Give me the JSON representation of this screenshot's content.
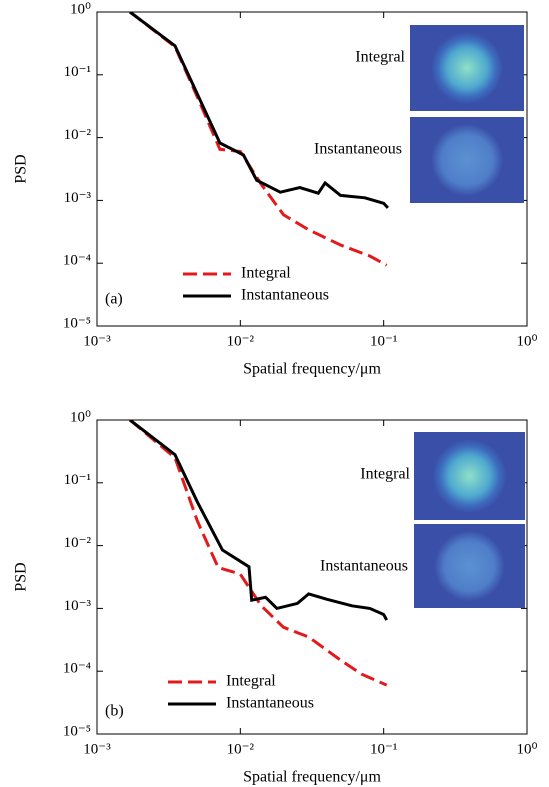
{
  "chart_data": [
    {
      "type": "line",
      "panel_label": "(a)",
      "xlabel": "Spatial frequency/μm",
      "ylabel": "PSD",
      "xscale": "log",
      "yscale": "log",
      "legend": "lower left",
      "xlim": [
        0.001,
        1
      ],
      "ylim": [
        1e-05,
        1
      ],
      "xticks": [
        {
          "value": 0.001,
          "label": "10⁻³"
        },
        {
          "value": 0.01,
          "label": "10⁻²"
        },
        {
          "value": 0.1,
          "label": "10⁻¹"
        },
        {
          "value": 1,
          "label": "10⁰"
        }
      ],
      "yticks": [
        {
          "value": 1e-05,
          "label": "10⁻⁵"
        },
        {
          "value": 0.0001,
          "label": "10⁻⁴"
        },
        {
          "value": 0.001,
          "label": "10⁻³"
        },
        {
          "value": 0.01,
          "label": "10⁻²"
        },
        {
          "value": 0.1,
          "label": "10⁻¹"
        },
        {
          "value": 1,
          "label": "10⁰"
        }
      ],
      "inset_labels": [
        "Integral",
        "Instantaneous"
      ],
      "series": [
        {
          "name": "Integral",
          "color": "#e31a1c",
          "style": "dashed",
          "x": [
            0.0017,
            0.0035,
            0.005,
            0.0072,
            0.01,
            0.014,
            0.02,
            0.03,
            0.05,
            0.08,
            0.105
          ],
          "values": [
            1,
            0.28,
            0.045,
            0.0065,
            0.006,
            0.0018,
            0.00059,
            0.00034,
            0.000195,
            0.00013,
            9.3e-05
          ]
        },
        {
          "name": "Instantaneous",
          "color": "#000000",
          "style": "solid",
          "x": [
            0.0017,
            0.0035,
            0.005,
            0.0072,
            0.0105,
            0.013,
            0.019,
            0.026,
            0.035,
            0.039,
            0.05,
            0.074,
            0.1,
            0.107
          ],
          "values": [
            1,
            0.29,
            0.05,
            0.0082,
            0.0053,
            0.0021,
            0.00135,
            0.0016,
            0.0013,
            0.0019,
            0.0012,
            0.0011,
            0.0009,
            0.00076
          ]
        }
      ]
    },
    {
      "type": "line",
      "panel_label": "(b)",
      "xlabel": "Spatial frequency/μm",
      "ylabel": "PSD",
      "xscale": "log",
      "yscale": "log",
      "legend": "lower left",
      "xlim": [
        0.001,
        1
      ],
      "ylim": [
        1e-05,
        1
      ],
      "xticks": [
        {
          "value": 0.001,
          "label": "10⁻³"
        },
        {
          "value": 0.01,
          "label": "10⁻²"
        },
        {
          "value": 0.1,
          "label": "10⁻¹"
        },
        {
          "value": 1,
          "label": "10⁰"
        }
      ],
      "yticks": [
        {
          "value": 1e-05,
          "label": "10⁻⁵"
        },
        {
          "value": 0.0001,
          "label": "10⁻⁴"
        },
        {
          "value": 0.001,
          "label": "10⁻³"
        },
        {
          "value": 0.01,
          "label": "10⁻²"
        },
        {
          "value": 0.1,
          "label": "10⁻¹"
        },
        {
          "value": 1,
          "label": "10⁰"
        }
      ],
      "inset_labels": [
        "Integral",
        "Instantaneous"
      ],
      "series": [
        {
          "name": "Integral",
          "color": "#e31a1c",
          "style": "dashed",
          "x": [
            0.0017,
            0.0035,
            0.005,
            0.007,
            0.01,
            0.014,
            0.02,
            0.03,
            0.05,
            0.07,
            0.105
          ],
          "values": [
            1,
            0.25,
            0.025,
            0.0045,
            0.0035,
            0.0011,
            0.0005,
            0.00035,
            0.00015,
            9e-05,
            6e-05
          ]
        },
        {
          "name": "Instantaneous",
          "color": "#000000",
          "style": "solid",
          "x": [
            0.0017,
            0.0035,
            0.005,
            0.0075,
            0.0115,
            0.012,
            0.015,
            0.018,
            0.025,
            0.03,
            0.04,
            0.06,
            0.08,
            0.1,
            0.105
          ],
          "values": [
            1,
            0.28,
            0.05,
            0.0085,
            0.0046,
            0.00135,
            0.0015,
            0.001,
            0.0012,
            0.0017,
            0.0014,
            0.0011,
            0.001,
            0.0008,
            0.00065
          ]
        }
      ]
    }
  ]
}
